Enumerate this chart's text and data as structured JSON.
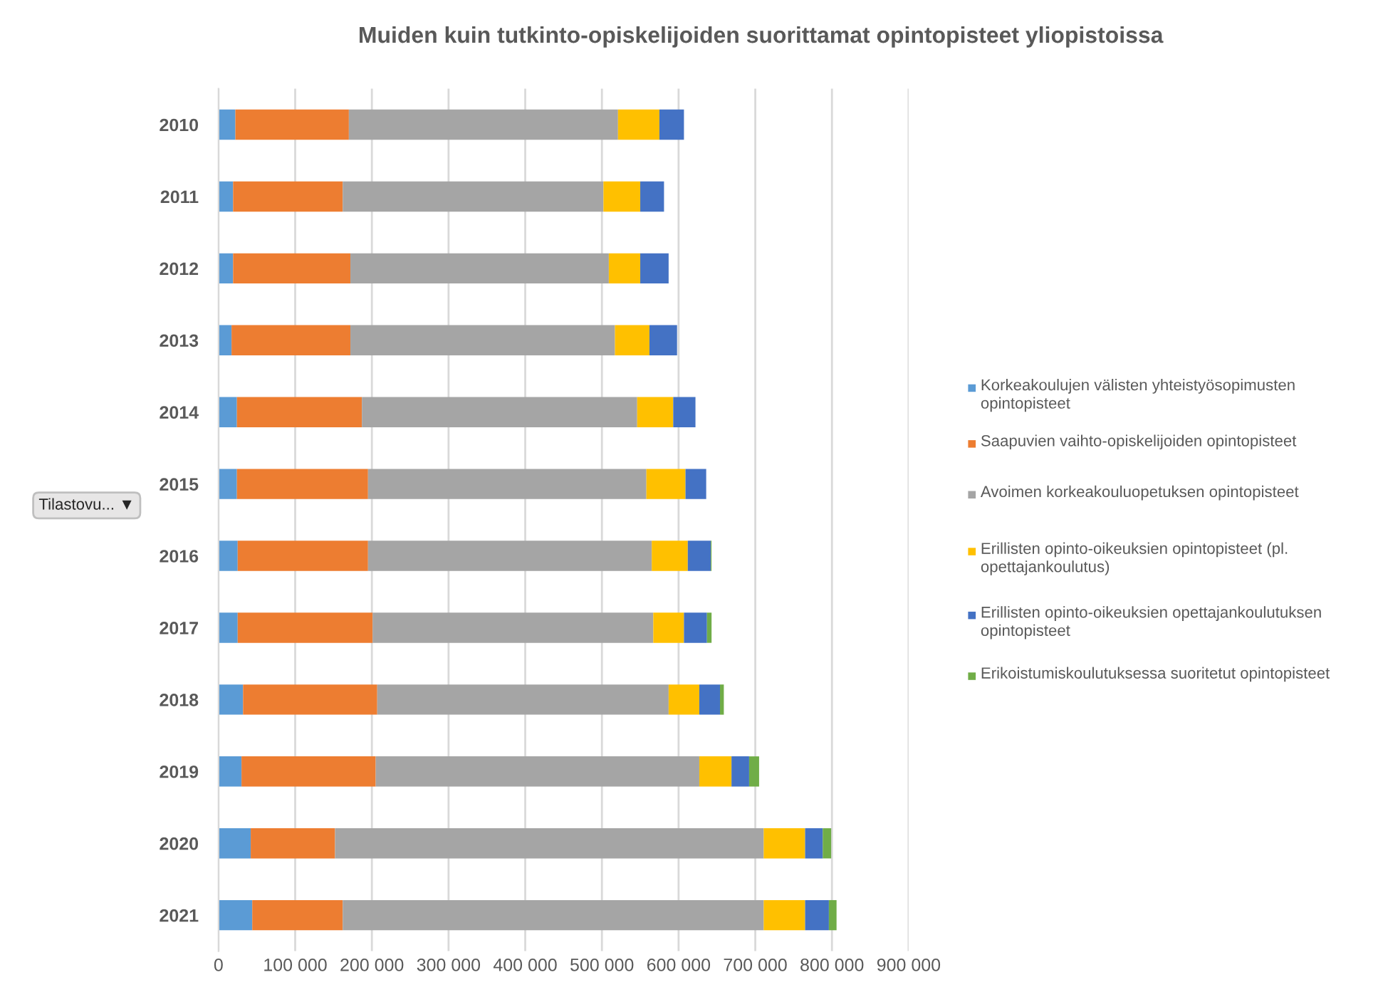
{
  "chart_data": {
    "type": "bar",
    "orientation": "horizontal",
    "stacked": true,
    "title": "Muiden kuin tutkinto-opiskelijoiden suorittamat opintopisteet yliopistoissa",
    "categories": [
      "2010",
      "2011",
      "2012",
      "2013",
      "2014",
      "2015",
      "2016",
      "2017",
      "2018",
      "2019",
      "2020",
      "2021"
    ],
    "series": [
      {
        "name": "Korkeakoulujen välisten yhteistyösopimusten opintopisteet",
        "color": "#5b9bd5",
        "values": [
          22000,
          19000,
          19000,
          17000,
          24000,
          24000,
          25000,
          25000,
          32000,
          30000,
          42000,
          44000
        ]
      },
      {
        "name": "Saapuvien vaihto-opiskelijoiden opintopisteet",
        "color": "#ed7d31",
        "values": [
          148000,
          143000,
          153000,
          155000,
          163000,
          171000,
          170000,
          176000,
          175000,
          175000,
          110000,
          118000
        ]
      },
      {
        "name": "Avoimen korkeakouluopetuksen opintopisteet",
        "color": "#a5a5a5",
        "values": [
          351000,
          340000,
          337000,
          345000,
          359000,
          363000,
          370000,
          366000,
          380000,
          422000,
          559000,
          549000
        ]
      },
      {
        "name": "Erillisten opinto-oikeuksien opintopisteet (pl. opettajankoulutus)",
        "color": "#ffc000",
        "values": [
          54000,
          48000,
          41000,
          45000,
          47000,
          51000,
          47000,
          40000,
          40000,
          42000,
          54000,
          54000
        ]
      },
      {
        "name": "Erillisten opinto-oikeuksien opettajankoulutuksen opintopisteet",
        "color": "#4472c4",
        "values": [
          32000,
          31000,
          37000,
          36000,
          29000,
          27000,
          30000,
          30000,
          27000,
          23000,
          23000,
          31000
        ]
      },
      {
        "name": "Erikoistumiskoulutuksessa suoritetut opintopisteet",
        "color": "#70ad47",
        "values": [
          0,
          0,
          0,
          0,
          0,
          0,
          1000,
          6000,
          5000,
          13000,
          11000,
          10000
        ]
      }
    ],
    "xlim": [
      0,
      900000
    ],
    "xticks": [
      0,
      {
        "value": 100000,
        "label": "100 000"
      },
      {
        "value": 200000,
        "label": "200 000"
      },
      {
        "value": 300000,
        "label": "300 000"
      },
      {
        "value": 400000,
        "label": "400 000"
      },
      {
        "value": 500000,
        "label": "500 000"
      },
      {
        "value": 600000,
        "label": "600 000"
      },
      {
        "value": 700000,
        "label": "700 000"
      },
      {
        "value": 800000,
        "label": "800 000"
      },
      {
        "value": 900000,
        "label": "900 000"
      }
    ],
    "grid": "x",
    "legend": "right",
    "annotations": [
      "Tilastovu... ▼"
    ]
  }
}
